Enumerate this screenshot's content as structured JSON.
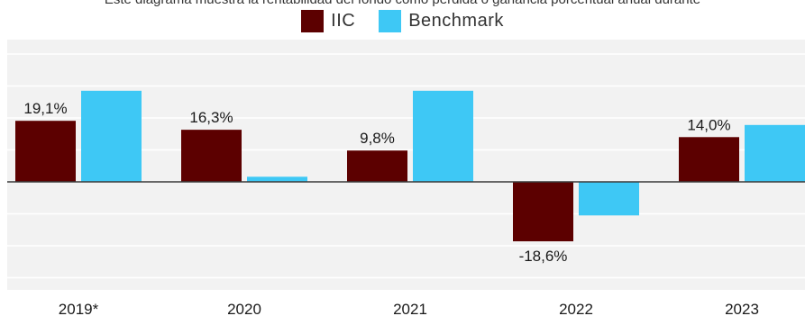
{
  "subtitle": "Este diagrama muestra la rentabilidad del fondo como pérdida o ganancia porcentual anual durante",
  "colors": {
    "iic": "#5c0000",
    "benchmark": "#3ec8f5",
    "plot_background": "#f2f2f2",
    "grid": "#ffffff",
    "zero_line": "#3a3a3a"
  },
  "chart_data": {
    "type": "bar",
    "title": "",
    "xlabel": "",
    "ylabel": "",
    "categories": [
      "2019*",
      "2020",
      "2021",
      "2022",
      "2023"
    ],
    "series": [
      {
        "name": "IIC",
        "values": [
          19.1,
          16.3,
          9.8,
          -18.6,
          14.0
        ],
        "labels": [
          "19,1%",
          "16,3%",
          "9,8%",
          "-18,6%",
          "14,0%"
        ]
      },
      {
        "name": "Benchmark",
        "values": [
          28.5,
          1.6,
          28.5,
          -10.5,
          17.8
        ]
      }
    ],
    "ylim": [
      -35,
      40
    ],
    "grid": true,
    "legend_position": "top-center"
  }
}
